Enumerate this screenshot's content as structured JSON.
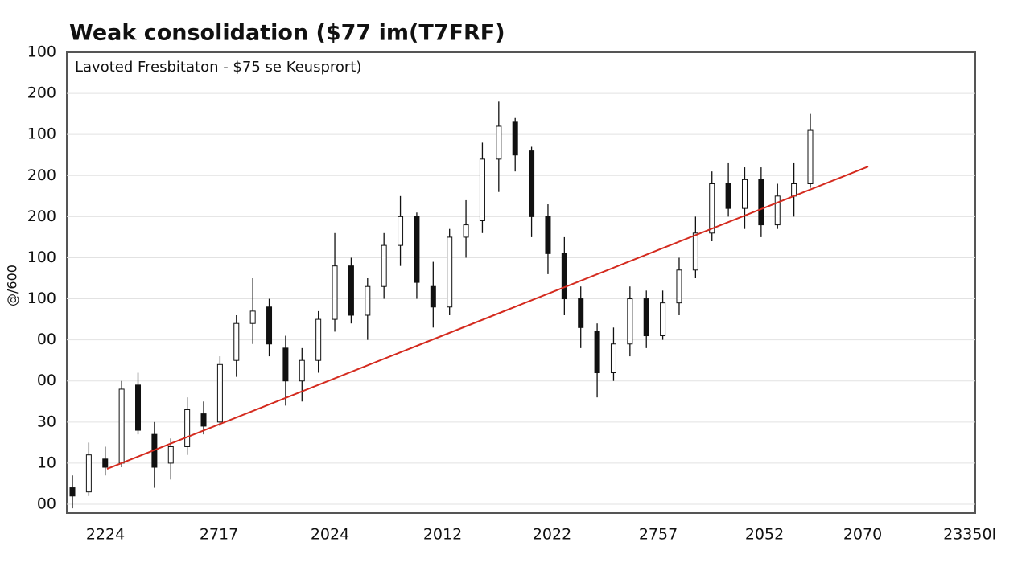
{
  "chart_data": {
    "type": "candlestick",
    "title": "Weak consolidation ($77 im(T7FRF)",
    "subtitle": "Lavoted Fresbitaton -  $75 se Keusprort)",
    "y_axis_label": "@/600",
    "y_axis_labels": [
      "100",
      "200",
      "100",
      "200",
      "200",
      "100",
      "100",
      "00",
      "00",
      "30",
      "10",
      "00"
    ],
    "x_axis_labels": [
      "2224",
      "2717",
      "2024",
      "2012",
      "2022",
      "2757",
      "2052",
      "2070",
      "23350l"
    ],
    "ylim": [
      0,
      11
    ],
    "grid": true,
    "up_color": "#ffffff",
    "down_color": "#111111",
    "open": [
      0.4,
      0.3,
      1.1,
      1.0,
      2.9,
      1.7,
      1.0,
      1.4,
      2.2,
      2.0,
      3.5,
      4.4,
      4.8,
      3.8,
      3.0,
      3.5,
      4.5,
      5.8,
      4.6,
      5.3,
      6.3,
      7.0,
      5.3,
      4.8,
      6.5,
      6.9,
      8.4,
      9.3,
      8.6,
      7.0,
      6.1,
      5.0,
      4.2,
      3.2,
      3.9,
      5.0,
      4.1,
      4.9,
      5.7,
      6.6,
      7.8,
      7.2,
      7.9,
      6.8,
      7.5,
      7.8
    ],
    "high": [
      0.7,
      1.5,
      1.4,
      3.0,
      3.2,
      2.0,
      1.6,
      2.6,
      2.5,
      3.6,
      4.6,
      5.5,
      5.0,
      4.1,
      3.8,
      4.7,
      6.6,
      6.0,
      5.5,
      6.6,
      7.5,
      7.1,
      5.9,
      6.7,
      7.4,
      8.8,
      9.8,
      9.4,
      8.7,
      7.3,
      6.5,
      5.3,
      4.4,
      4.3,
      5.3,
      5.2,
      5.2,
      6.0,
      7.0,
      8.1,
      8.3,
      8.2,
      8.2,
      7.8,
      8.3,
      9.5
    ],
    "low": [
      -0.1,
      0.2,
      0.7,
      0.9,
      1.7,
      0.4,
      0.6,
      1.2,
      1.7,
      1.9,
      3.1,
      3.9,
      3.6,
      2.4,
      2.5,
      3.2,
      4.2,
      4.4,
      4.0,
      5.0,
      5.8,
      5.0,
      4.3,
      4.6,
      6.0,
      6.6,
      7.6,
      8.1,
      6.5,
      5.6,
      4.6,
      3.8,
      2.6,
      3.0,
      3.6,
      3.8,
      4.0,
      4.6,
      5.5,
      6.4,
      7.0,
      6.7,
      6.5,
      6.7,
      7.0,
      7.7
    ],
    "close": [
      0.2,
      1.2,
      0.9,
      2.8,
      1.8,
      0.9,
      1.4,
      2.3,
      1.9,
      3.4,
      4.4,
      4.7,
      3.9,
      3.0,
      3.5,
      4.5,
      5.8,
      4.6,
      5.3,
      6.3,
      7.0,
      5.4,
      4.8,
      6.5,
      6.8,
      8.4,
      9.2,
      8.5,
      7.0,
      6.1,
      5.0,
      4.3,
      3.2,
      3.9,
      5.0,
      4.1,
      4.9,
      5.7,
      6.6,
      7.8,
      7.2,
      7.9,
      6.8,
      7.5,
      7.8,
      9.1
    ],
    "trend": {
      "color": "#d42a1e",
      "values": [
        0.86,
        8.22
      ]
    }
  }
}
